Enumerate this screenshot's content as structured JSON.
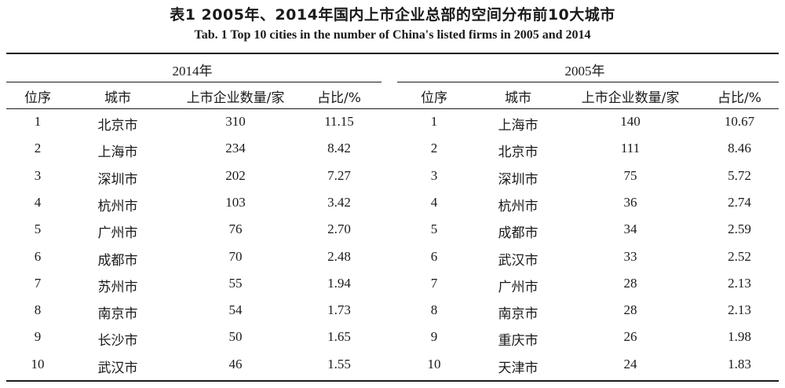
{
  "title": "表1  2005年、2014年国内上市企业总部的空间分布前10大城市",
  "subtitle": "Tab. 1   Top 10 cities in the number of China's listed firms in 2005 and 2014",
  "groups": [
    {
      "label": "2014年",
      "headers": [
        "位序",
        "城市",
        "上市企业数量/家",
        "占比/%"
      ],
      "rows": [
        [
          "1",
          "北京市",
          "310",
          "11.15"
        ],
        [
          "2",
          "上海市",
          "234",
          "8.42"
        ],
        [
          "3",
          "深圳市",
          "202",
          "7.27"
        ],
        [
          "4",
          "杭州市",
          "103",
          "3.42"
        ],
        [
          "5",
          "广州市",
          "76",
          "2.70"
        ],
        [
          "6",
          "成都市",
          "70",
          "2.48"
        ],
        [
          "7",
          "苏州市",
          "55",
          "1.94"
        ],
        [
          "8",
          "南京市",
          "54",
          "1.73"
        ],
        [
          "9",
          "长沙市",
          "50",
          "1.65"
        ],
        [
          "10",
          "武汉市",
          "46",
          "1.55"
        ]
      ]
    },
    {
      "label": "2005年",
      "headers": [
        "位序",
        "城市",
        "上市企业数量/家",
        "占比/%"
      ],
      "rows": [
        [
          "1",
          "上海市",
          "140",
          "10.67"
        ],
        [
          "2",
          "北京市",
          "111",
          "8.46"
        ],
        [
          "3",
          "深圳市",
          "75",
          "5.72"
        ],
        [
          "4",
          "杭州市",
          "36",
          "2.74"
        ],
        [
          "5",
          "成都市",
          "34",
          "2.59"
        ],
        [
          "6",
          "武汉市",
          "33",
          "2.52"
        ],
        [
          "7",
          "广州市",
          "28",
          "2.13"
        ],
        [
          "8",
          "南京市",
          "28",
          "2.13"
        ],
        [
          "9",
          "重庆市",
          "26",
          "1.98"
        ],
        [
          "10",
          "天津市",
          "24",
          "1.83"
        ]
      ]
    }
  ]
}
